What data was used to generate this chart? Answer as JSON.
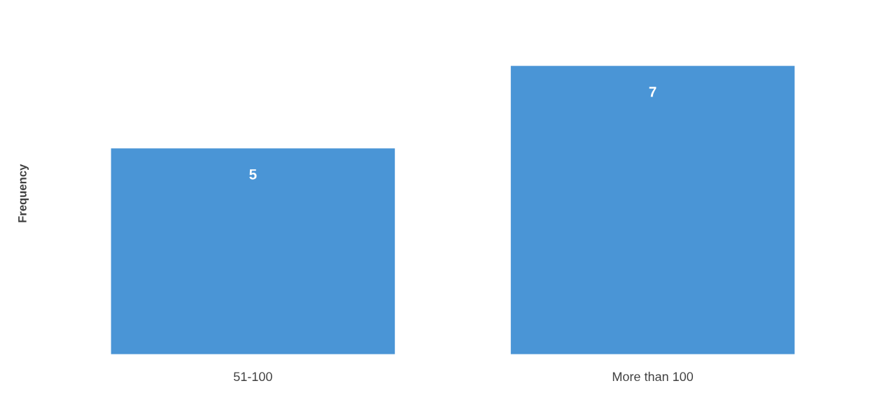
{
  "chart_data": {
    "type": "bar",
    "ylabel": "Frequency",
    "categories": [
      "51-100",
      "More than 100"
    ],
    "values": [
      5,
      7
    ],
    "color": "#4a95d6",
    "data_labels": true,
    "grid": false,
    "tick_labels": "x"
  }
}
